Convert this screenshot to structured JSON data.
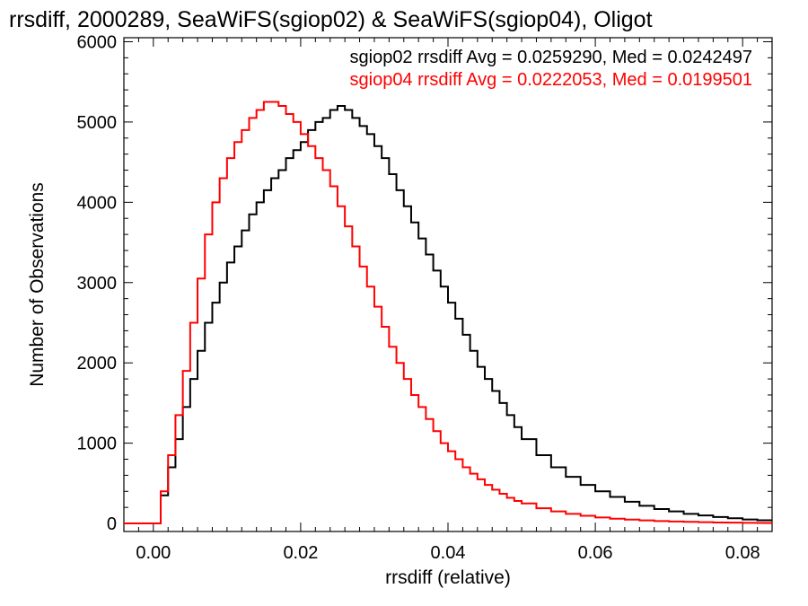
{
  "chart_data": {
    "type": "line",
    "title": "rrsdiff, 2000289, SeaWiFS(sgiop02) & SeaWiFS(sgiop04), Oligot",
    "xlabel": "rrsdiff (relative)",
    "ylabel": "Number of Observations",
    "xlim": [
      -0.004,
      0.084
    ],
    "ylim": [
      -100,
      6050
    ],
    "x_ticks": [
      0.0,
      0.02,
      0.04,
      0.06,
      0.08
    ],
    "x_tick_labels": [
      "0.00",
      "0.02",
      "0.04",
      "0.06",
      "0.08"
    ],
    "y_ticks": [
      0,
      1000,
      2000,
      3000,
      4000,
      5000,
      6000
    ],
    "y_tick_labels": [
      "0",
      "1000",
      "2000",
      "3000",
      "4000",
      "5000",
      "6000"
    ],
    "grid": false,
    "legend_position": "top-right",
    "series": [
      {
        "name": "sgiop02",
        "color": "#000000",
        "label": "sgiop02 rrsdiff Avg = 0.0259290, Med = 0.0242497",
        "x": [
          0.0,
          0.001,
          0.002,
          0.003,
          0.004,
          0.005,
          0.006,
          0.007,
          0.008,
          0.009,
          0.01,
          0.011,
          0.012,
          0.013,
          0.014,
          0.015,
          0.016,
          0.017,
          0.018,
          0.019,
          0.02,
          0.021,
          0.022,
          0.023,
          0.024,
          0.025,
          0.026,
          0.027,
          0.028,
          0.029,
          0.03,
          0.031,
          0.032,
          0.033,
          0.034,
          0.035,
          0.036,
          0.037,
          0.038,
          0.039,
          0.04,
          0.041,
          0.042,
          0.043,
          0.044,
          0.045,
          0.046,
          0.047,
          0.048,
          0.049,
          0.05,
          0.052,
          0.054,
          0.056,
          0.058,
          0.06,
          0.062,
          0.064,
          0.066,
          0.068,
          0.07,
          0.072,
          0.074,
          0.076,
          0.078,
          0.08,
          0.082,
          0.084
        ],
        "y": [
          0,
          350,
          700,
          1050,
          1450,
          1800,
          2150,
          2500,
          2750,
          3000,
          3250,
          3450,
          3650,
          3850,
          4000,
          4150,
          4300,
          4400,
          4550,
          4650,
          4750,
          4900,
          5000,
          5050,
          5150,
          5200,
          5150,
          5050,
          4950,
          4850,
          4700,
          4550,
          4350,
          4150,
          3950,
          3750,
          3550,
          3350,
          3150,
          2950,
          2750,
          2550,
          2350,
          2150,
          1950,
          1800,
          1650,
          1500,
          1350,
          1200,
          1050,
          850,
          700,
          580,
          480,
          400,
          330,
          270,
          220,
          180,
          150,
          120,
          100,
          80,
          65,
          50,
          40,
          30
        ]
      },
      {
        "name": "sgiop04",
        "color": "#ff0000",
        "label": "sgiop04 rrsdiff Avg = 0.0222053, Med = 0.0199501",
        "x": [
          0.0,
          0.001,
          0.002,
          0.003,
          0.004,
          0.005,
          0.006,
          0.007,
          0.008,
          0.009,
          0.01,
          0.011,
          0.012,
          0.013,
          0.014,
          0.015,
          0.016,
          0.017,
          0.018,
          0.019,
          0.02,
          0.021,
          0.022,
          0.023,
          0.024,
          0.025,
          0.026,
          0.027,
          0.028,
          0.029,
          0.03,
          0.031,
          0.032,
          0.033,
          0.034,
          0.035,
          0.036,
          0.037,
          0.038,
          0.039,
          0.04,
          0.041,
          0.042,
          0.043,
          0.044,
          0.045,
          0.046,
          0.047,
          0.048,
          0.049,
          0.05,
          0.052,
          0.054,
          0.056,
          0.058,
          0.06,
          0.062,
          0.064,
          0.066,
          0.068,
          0.07,
          0.072,
          0.074,
          0.076,
          0.078,
          0.08,
          0.082,
          0.084
        ],
        "y": [
          0,
          400,
          850,
          1350,
          1900,
          2500,
          3050,
          3600,
          4000,
          4300,
          4550,
          4750,
          4900,
          5050,
          5150,
          5250,
          5250,
          5200,
          5100,
          5000,
          4850,
          4700,
          4550,
          4400,
          4200,
          3950,
          3700,
          3450,
          3200,
          2950,
          2700,
          2450,
          2200,
          2000,
          1800,
          1600,
          1450,
          1300,
          1150,
          1000,
          900,
          800,
          700,
          620,
          550,
          480,
          420,
          370,
          320,
          280,
          250,
          190,
          150,
          120,
          95,
          75,
          60,
          48,
          38,
          30,
          25,
          20,
          16,
          12,
          10,
          8,
          6,
          5
        ]
      }
    ]
  }
}
